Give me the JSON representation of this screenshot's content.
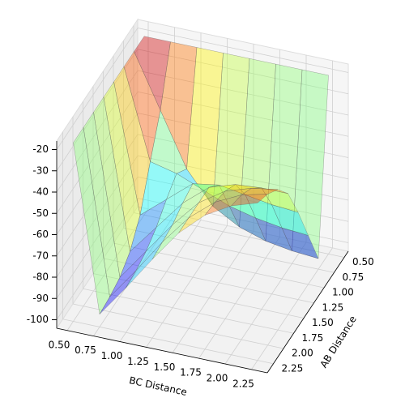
{
  "chart_data": {
    "type": "surface3d",
    "xlabel": "BC Distance",
    "ylabel": "AB Distance",
    "x": [
      0.5,
      0.75,
      1.0,
      1.25,
      1.5,
      1.75,
      2.0,
      2.25
    ],
    "y": [
      0.5,
      0.75,
      1.0,
      1.25,
      1.5,
      1.75,
      2.0,
      2.25
    ],
    "z": [
      [
        -20,
        -20,
        -20,
        -20,
        -20,
        -20,
        -20,
        -20
      ],
      [
        -20,
        -45,
        -70,
        -85,
        -92,
        -96,
        -98,
        -99
      ],
      [
        -20,
        -62,
        -65,
        -70,
        -75,
        -78,
        -80,
        -81
      ],
      [
        -20,
        -80,
        -70,
        -60,
        -58,
        -60,
        -62,
        -63
      ],
      [
        -20,
        -90,
        -76,
        -62,
        -52,
        -48,
        -47,
        -47
      ],
      [
        -20,
        -95,
        -80,
        -65,
        -52,
        -44,
        -40,
        -38
      ],
      [
        -20,
        -97,
        -82,
        -66,
        -52,
        -42,
        -36,
        -33
      ],
      [
        -20,
        -98,
        -83,
        -67,
        -52,
        -41,
        -34,
        -30
      ]
    ],
    "colormap": "jet",
    "xlim": [
      0.4,
      2.4
    ],
    "ylim": [
      0.4,
      2.4
    ],
    "zlim": [
      -104,
      -16
    ],
    "xticks": [
      {
        "value": 0.5,
        "label": "0.50"
      },
      {
        "value": 0.75,
        "label": "0.75"
      },
      {
        "value": 1.0,
        "label": "1.00"
      },
      {
        "value": 1.25,
        "label": "1.25"
      },
      {
        "value": 1.5,
        "label": "1.50"
      },
      {
        "value": 1.75,
        "label": "1.75"
      },
      {
        "value": 2.0,
        "label": "2.00"
      },
      {
        "value": 2.25,
        "label": "2.25"
      }
    ],
    "yticks": [
      {
        "value": 0.5,
        "label": "0.50"
      },
      {
        "value": 0.75,
        "label": "0.75"
      },
      {
        "value": 1.0,
        "label": "1.00"
      },
      {
        "value": 1.25,
        "label": "1.25"
      },
      {
        "value": 1.5,
        "label": "1.50"
      },
      {
        "value": 1.75,
        "label": "1.75"
      },
      {
        "value": 2.0,
        "label": "2.00"
      },
      {
        "value": 2.25,
        "label": "2.25"
      }
    ],
    "zticks": [
      -100,
      -90,
      -80,
      -70,
      -60,
      -50,
      -40,
      -30,
      -20
    ],
    "grid": true
  }
}
